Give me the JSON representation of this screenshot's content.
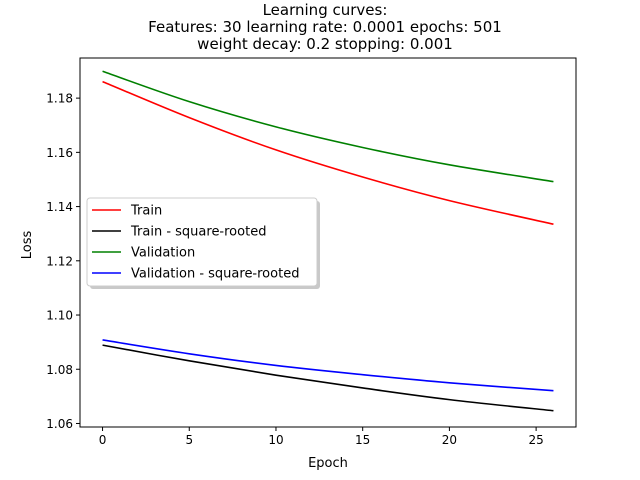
{
  "chart_data": {
    "type": "line",
    "title_lines": [
      "Learning curves:",
      "Features: 30 learning rate: 0.0001 epochs: 501",
      "weight decay: 0.2 stopping: 0.001"
    ],
    "xlabel": "Epoch",
    "ylabel": "Loss",
    "xlim": [
      -1.3,
      27.3
    ],
    "ylim": [
      1.0587,
      1.1948
    ],
    "xticks": [
      0,
      5,
      10,
      15,
      20,
      25
    ],
    "yticks": [
      1.06,
      1.08,
      1.1,
      1.12,
      1.14,
      1.16,
      1.18
    ],
    "ytick_labels": [
      "1.06",
      "1.08",
      "1.10",
      "1.12",
      "1.14",
      "1.16",
      "1.18"
    ],
    "grid": false,
    "legend_position": "center-left",
    "series": [
      {
        "name": "Train",
        "color": "#ff0000",
        "x": [
          0,
          5,
          10,
          15,
          20,
          26
        ],
        "y": [
          1.1861,
          1.1728,
          1.1609,
          1.1509,
          1.1422,
          1.1335
        ]
      },
      {
        "name": "Train - square-rooted",
        "color": "#000000",
        "x": [
          0,
          5,
          10,
          15,
          20,
          26
        ],
        "y": [
          1.0889,
          1.0831,
          1.0778,
          1.0731,
          1.0688,
          1.0647
        ]
      },
      {
        "name": "Validation",
        "color": "#008000",
        "x": [
          0,
          5,
          10,
          15,
          20,
          26
        ],
        "y": [
          1.1899,
          1.1787,
          1.1694,
          1.1618,
          1.1554,
          1.1492
        ]
      },
      {
        "name": "Validation - square-rooted",
        "color": "#0000ff",
        "x": [
          0,
          5,
          10,
          15,
          20,
          26
        ],
        "y": [
          1.0908,
          1.0857,
          1.0814,
          1.078,
          1.075,
          1.0721
        ]
      }
    ]
  }
}
